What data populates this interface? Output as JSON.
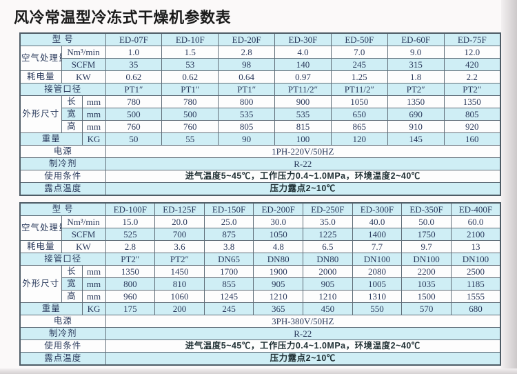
{
  "page_title": "风冷常温型冷冻式干燥机参数表",
  "colors": {
    "stripe": "#cfeef5",
    "border": "#5f6d78",
    "border_dark": "#4e5c66",
    "text": "#2a3a5c",
    "title": "#1a1a1a"
  },
  "labels": {
    "model": "型 号",
    "air_capacity": "空气处理量",
    "unit_nm3": "Nm³/min",
    "unit_scfm": "SCFM",
    "power_consumption": "耗电量",
    "unit_kw": "KW",
    "pipe_diameter": "接管口径",
    "dimensions": "外形尺寸",
    "dim_length": "长",
    "dim_width": "宽",
    "dim_height": "高",
    "unit_mm": "mm",
    "weight": "重量",
    "unit_kg": "KG",
    "power_supply": "电源",
    "refrigerant": "制冷剂",
    "conditions": "使用条件",
    "dew_point": "露点温度"
  },
  "tables": [
    {
      "models": [
        "ED-07F",
        "ED-10F",
        "ED-20F",
        "ED-30F",
        "ED-50F",
        "ED-60F",
        "ED-75F"
      ],
      "nm3_min": [
        "1.0",
        "1.5",
        "2.8",
        "4.0",
        "7.0",
        "9.0",
        "12.0"
      ],
      "scfm": [
        "35",
        "53",
        "98",
        "140",
        "245",
        "315",
        "420"
      ],
      "kw": [
        "0.62",
        "0.62",
        "0.64",
        "0.97",
        "1.25",
        "1.8",
        "2.2"
      ],
      "pipe": [
        "PT1″",
        "PT1″",
        "PT1″",
        "PT11/2″",
        "PT11/2″",
        "PT2″",
        "PT2″"
      ],
      "length": [
        "780",
        "780",
        "800",
        "900",
        "1050",
        "1350",
        "1350"
      ],
      "width": [
        "500",
        "500",
        "535",
        "535",
        "650",
        "690",
        "805"
      ],
      "height": [
        "760",
        "760",
        "805",
        "815",
        "865",
        "910",
        "920"
      ],
      "weight": [
        "50",
        "55",
        "90",
        "100",
        "120",
        "145",
        "160"
      ],
      "power_supply": "1PH-220V/50HZ",
      "refrigerant": "R-22",
      "conditions": "进气温度5~45℃，工作压力0.4~1.0MPa，环境温度2~40℃",
      "dew_point": "压力露点2~10℃"
    },
    {
      "models": [
        "ED-100F",
        "ED-125F",
        "ED-150F",
        "ED-200F",
        "ED-250F",
        "ED-300F",
        "ED-350F",
        "ED-400F"
      ],
      "nm3_min": [
        "15.0",
        "20.0",
        "25.0",
        "30.0",
        "35.0",
        "40.0",
        "50.0",
        "60.0"
      ],
      "scfm": [
        "525",
        "700",
        "875",
        "1050",
        "1225",
        "1400",
        "1750",
        "2100"
      ],
      "kw": [
        "2.8",
        "3.6",
        "3.8",
        "4.8",
        "6.5",
        "7.7",
        "9.7",
        "13"
      ],
      "pipe": [
        "PT2″",
        "PT2″",
        "DN65",
        "DN80",
        "DN80",
        "DN100",
        "DN100",
        "DN100"
      ],
      "length": [
        "1350",
        "1450",
        "1700",
        "1900",
        "2000",
        "2080",
        "2200",
        "2500"
      ],
      "width": [
        "800",
        "810",
        "855",
        "905",
        "905",
        "1005",
        "1035",
        "1185"
      ],
      "height": [
        "960",
        "1060",
        "1245",
        "1210",
        "1210",
        "1310",
        "1500",
        "1555"
      ],
      "weight": [
        "175",
        "200",
        "245",
        "365",
        "450",
        "550",
        "570",
        "680"
      ],
      "power_supply": "3PH-380V/50HZ",
      "refrigerant": "R-22",
      "conditions": "进气温度5~45℃，工作压力0.4~1.0MPa，环境温度2~40℃",
      "dew_point": "压力露点2~10℃"
    }
  ]
}
